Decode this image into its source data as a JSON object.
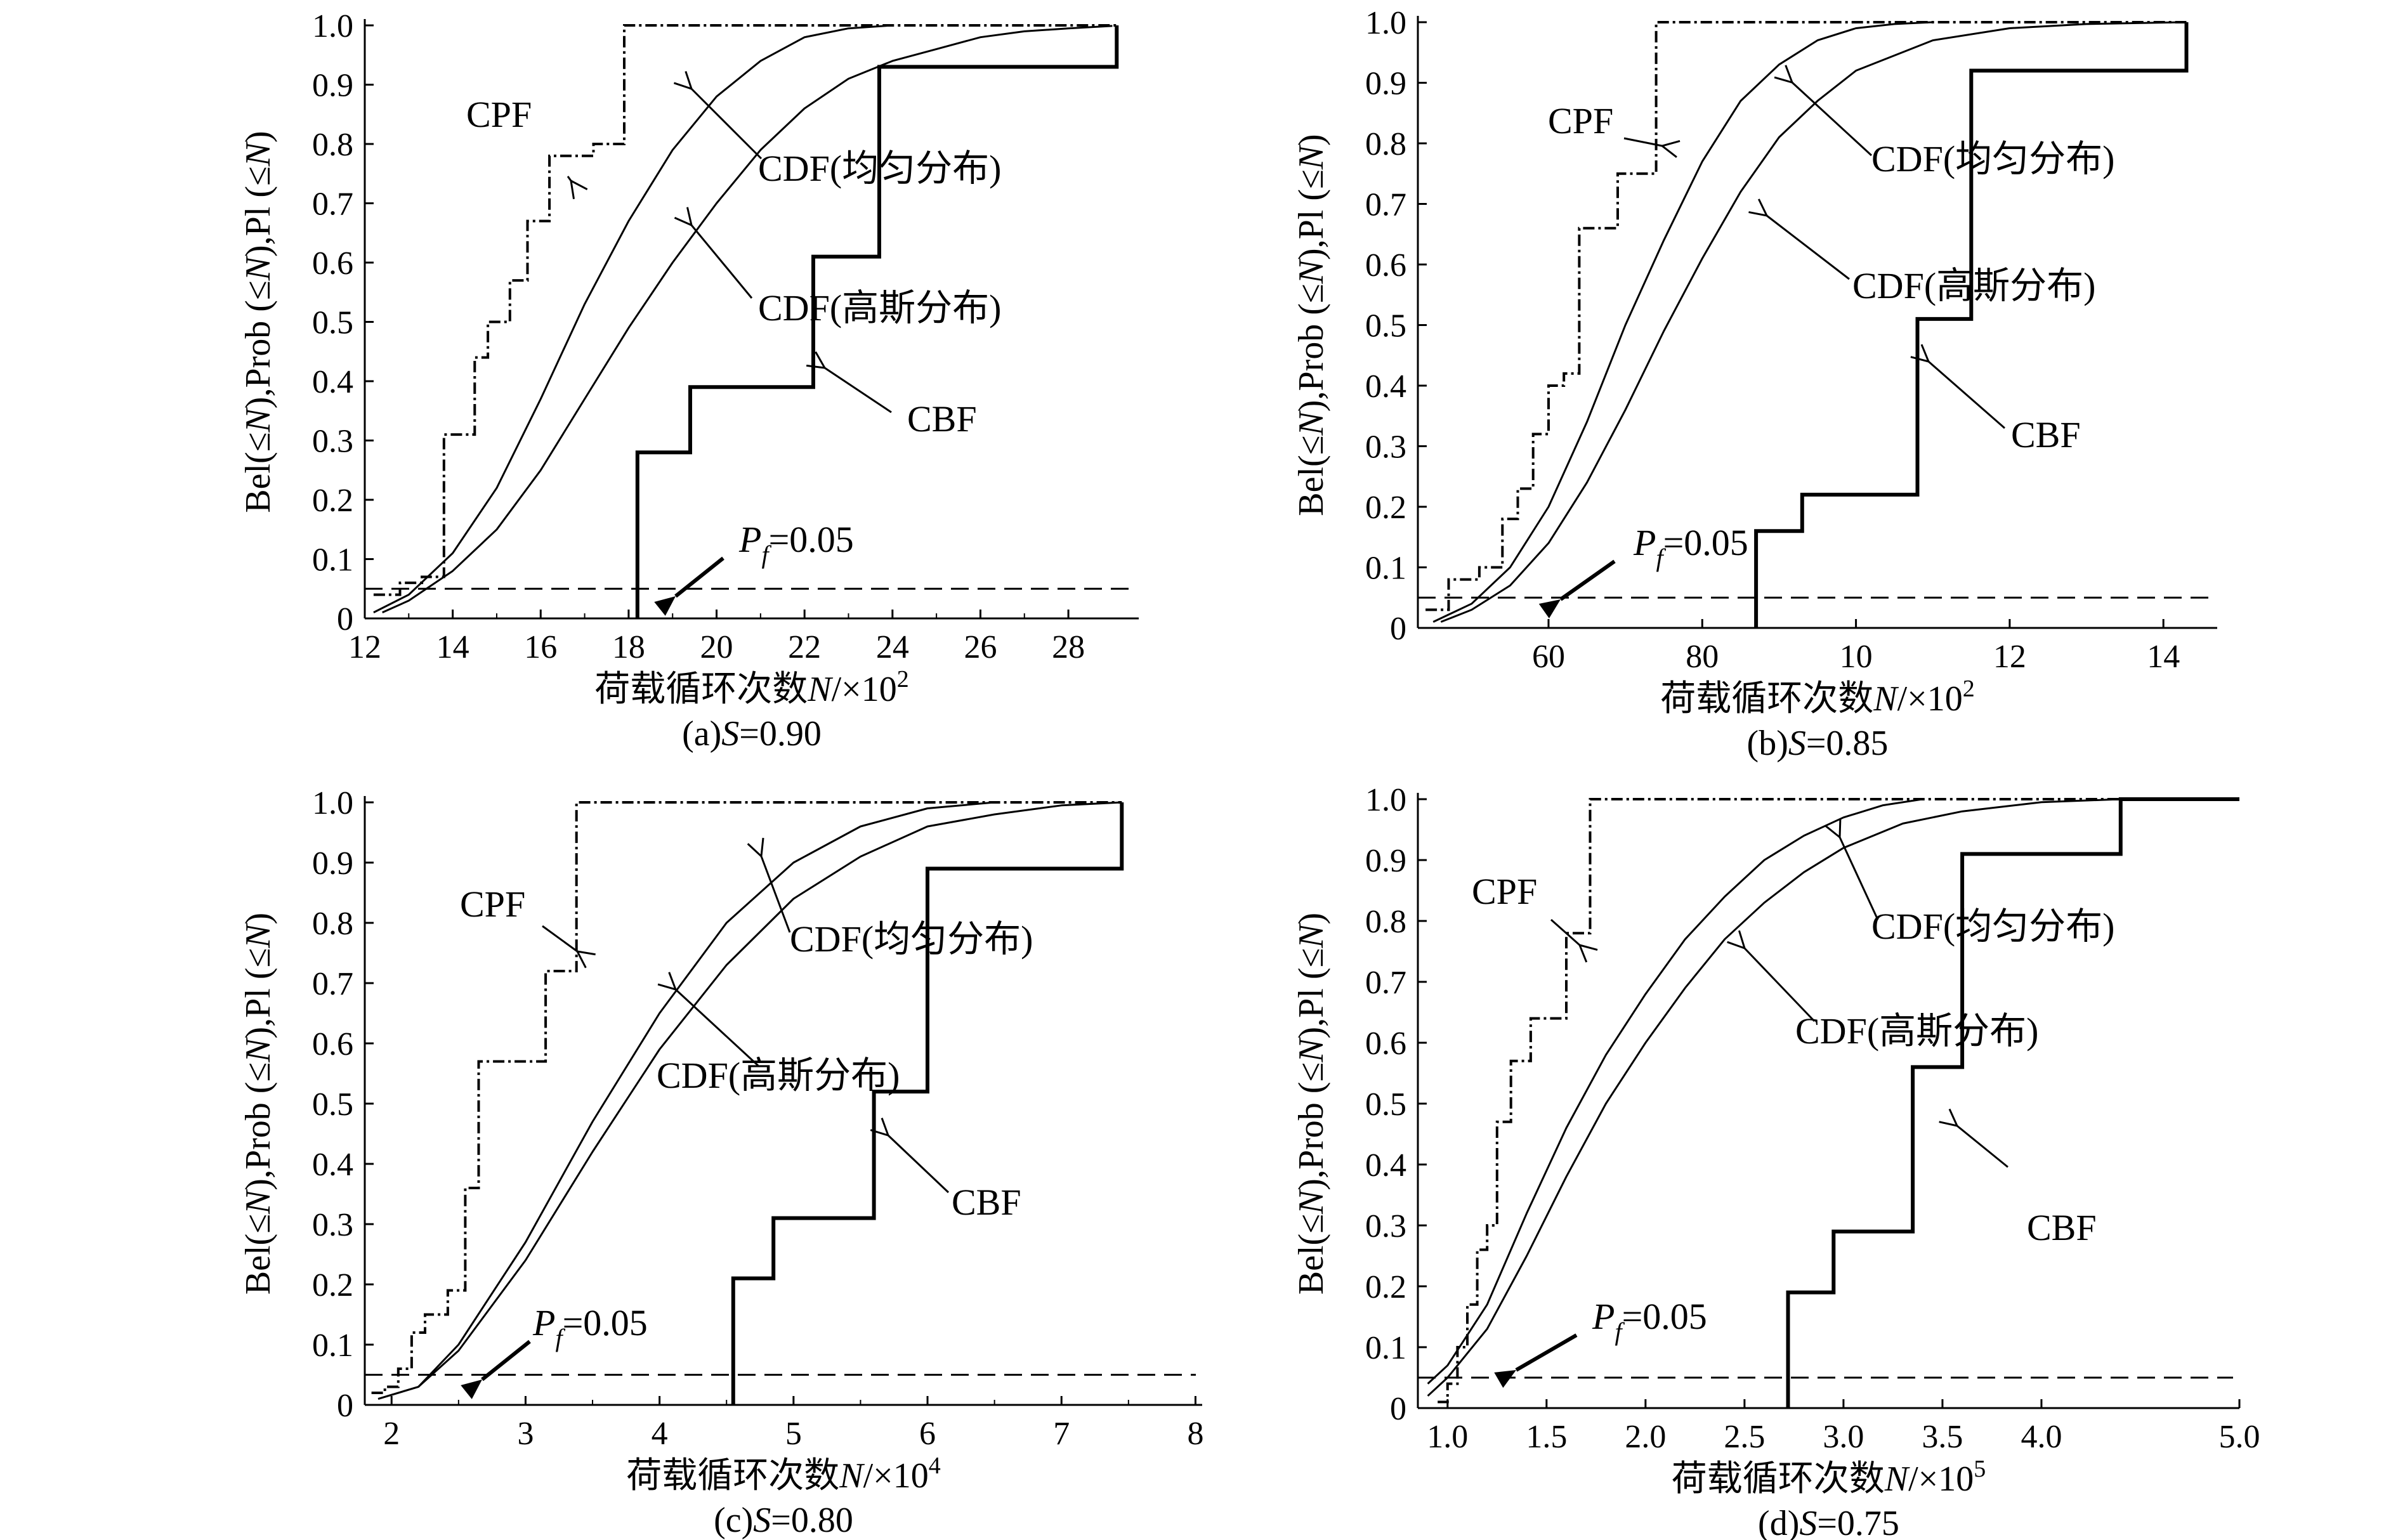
{
  "figure": {
    "ylabel": "Bel(≤N),Prob (≤N),Pl (≤N)",
    "xlabel_prefix": "荷载循环次数",
    "xlabel_var": "N",
    "pf_label": "=0.05",
    "pf_var": "P",
    "pf_sub": "f"
  },
  "chart_data": [
    {
      "type": "line",
      "caption_prefix": "(a)",
      "caption_var": "S",
      "caption_value": "=0.90",
      "xlabel_unit": "/×10",
      "xlabel_exp": "2",
      "xlim": [
        12,
        29.6
      ],
      "ylim": [
        0,
        1.0
      ],
      "xticks": [
        "12",
        "14",
        "16",
        "18",
        "20",
        "22",
        "24",
        "26",
        "28"
      ],
      "yticks": [
        "0",
        "0.1",
        "0.2",
        "0.3",
        "0.4",
        "0.5",
        "0.6",
        "0.7",
        "0.8",
        "0.9",
        "1.0"
      ],
      "pf": 0.05,
      "series": [
        {
          "name": "CPF",
          "style": "dashdot",
          "x": [
            12.2,
            12.8,
            12.8,
            13.3,
            13.3,
            13.8,
            13.8,
            14.5,
            14.5,
            14.8,
            14.8,
            15.3,
            15.3,
            15.7,
            15.7,
            16.2,
            16.2,
            16.5,
            16.5,
            17.2,
            17.2,
            17.9,
            17.9,
            29.1
          ],
          "y": [
            0.04,
            0.04,
            0.06,
            0.06,
            0.07,
            0.07,
            0.31,
            0.31,
            0.44,
            0.44,
            0.5,
            0.5,
            0.57,
            0.57,
            0.67,
            0.67,
            0.78,
            0.78,
            0.78,
            0.78,
            0.8,
            0.8,
            1.0,
            1.0
          ]
        },
        {
          "name": "CDF(均匀分布)",
          "style": "solid",
          "x": [
            12.2,
            13.0,
            14.0,
            15.0,
            16.0,
            17.0,
            18.0,
            19.0,
            20.0,
            21.0,
            22.0,
            23.0,
            24.0
          ],
          "y": [
            0.01,
            0.04,
            0.11,
            0.22,
            0.37,
            0.53,
            0.67,
            0.79,
            0.88,
            0.94,
            0.98,
            0.995,
            1.0
          ]
        },
        {
          "name": "CDF(高斯分布)",
          "style": "solid",
          "x": [
            12.4,
            13.0,
            14.0,
            15.0,
            16.0,
            17.0,
            18.0,
            19.0,
            20.0,
            21.0,
            22.0,
            23.0,
            24.0,
            25.0,
            26.0,
            27.0,
            28.0,
            29.0
          ],
          "y": [
            0.01,
            0.03,
            0.08,
            0.15,
            0.25,
            0.37,
            0.49,
            0.6,
            0.7,
            0.79,
            0.86,
            0.91,
            0.94,
            0.96,
            0.98,
            0.99,
            0.995,
            0.999
          ]
        },
        {
          "name": "CBF",
          "style": "bold",
          "x": [
            18.2,
            18.2,
            19.4,
            19.4,
            22.2,
            22.2,
            23.7,
            23.7,
            29.1,
            29.1
          ],
          "y": [
            0.0,
            0.28,
            0.28,
            0.39,
            0.39,
            0.61,
            0.61,
            0.93,
            0.93,
            1.0
          ]
        }
      ],
      "annotations": [
        {
          "label": "CPF"
        },
        {
          "label": "CDF(均匀分布)"
        },
        {
          "label": "CDF(高斯分布)"
        },
        {
          "label": "CBF"
        }
      ]
    },
    {
      "type": "line",
      "caption_prefix": "(b)",
      "caption_var": "S",
      "caption_value": "=0.85",
      "xlabel_unit": "/×10",
      "xlabel_exp": "2",
      "xlim": [
        43,
        147
      ],
      "ylim": [
        0,
        1.0
      ],
      "xticks": [
        "60",
        "80",
        "10",
        "12",
        "14"
      ],
      "xtick_values": [
        60,
        80,
        100,
        120,
        140
      ],
      "yticks": [
        "0",
        "0.1",
        "0.2",
        "0.3",
        "0.4",
        "0.5",
        "0.6",
        "0.7",
        "0.8",
        "0.9",
        "1.0"
      ],
      "pf": 0.05,
      "series": [
        {
          "name": "CPF",
          "style": "dashdot",
          "x": [
            44,
            47,
            47,
            51,
            51,
            54,
            54,
            56,
            56,
            58,
            58,
            60,
            60,
            62,
            62,
            64,
            64,
            69,
            69,
            74,
            74,
            143
          ],
          "y": [
            0.03,
            0.03,
            0.08,
            0.08,
            0.1,
            0.1,
            0.18,
            0.18,
            0.23,
            0.23,
            0.32,
            0.32,
            0.4,
            0.4,
            0.42,
            0.42,
            0.66,
            0.66,
            0.75,
            0.75,
            1.0,
            1.0
          ]
        },
        {
          "name": "CDF(均匀分布)",
          "style": "solid",
          "x": [
            45,
            50,
            55,
            60,
            65,
            70,
            75,
            80,
            85,
            90,
            95,
            100,
            105,
            110
          ],
          "y": [
            0.01,
            0.04,
            0.1,
            0.2,
            0.34,
            0.5,
            0.64,
            0.77,
            0.87,
            0.93,
            0.97,
            0.99,
            0.997,
            1.0
          ]
        },
        {
          "name": "CDF(高斯分布)",
          "style": "solid",
          "x": [
            46,
            50,
            55,
            60,
            65,
            70,
            75,
            80,
            85,
            90,
            95,
            100,
            110,
            120,
            130,
            143
          ],
          "y": [
            0.01,
            0.03,
            0.07,
            0.14,
            0.24,
            0.36,
            0.49,
            0.61,
            0.72,
            0.81,
            0.87,
            0.92,
            0.97,
            0.99,
            0.997,
            1.0
          ]
        },
        {
          "name": "CBF",
          "style": "bold",
          "x": [
            87,
            87,
            93,
            93,
            108,
            108,
            115,
            115,
            143,
            143
          ],
          "y": [
            0.0,
            0.16,
            0.16,
            0.22,
            0.22,
            0.51,
            0.51,
            0.92,
            0.92,
            1.0
          ]
        }
      ],
      "annotations": [
        {
          "label": "CPF"
        },
        {
          "label": "CDF(均匀分布)"
        },
        {
          "label": "CDF(高斯分布)"
        },
        {
          "label": "CBF"
        }
      ]
    },
    {
      "type": "line",
      "caption_prefix": "(c)",
      "caption_var": "S",
      "caption_value": "=0.80",
      "xlabel_unit": "/×10",
      "xlabel_exp": "4",
      "xlim": [
        1.8,
        8.05
      ],
      "ylim": [
        0,
        1.0
      ],
      "xticks": [
        "2",
        "3",
        "4",
        "5",
        "6",
        "7",
        "8"
      ],
      "yticks": [
        "0",
        "0.1",
        "0.2",
        "0.3",
        "0.4",
        "0.5",
        "0.6",
        "0.7",
        "0.8",
        "0.9",
        "1.0"
      ],
      "pf": 0.05,
      "series": [
        {
          "name": "CPF",
          "style": "dashdot",
          "x": [
            1.85,
            1.95,
            1.95,
            2.05,
            2.05,
            2.15,
            2.15,
            2.25,
            2.25,
            2.42,
            2.42,
            2.55,
            2.55,
            2.65,
            2.65,
            2.8,
            2.8,
            3.15,
            3.15,
            3.38,
            3.38,
            7.45
          ],
          "y": [
            0.02,
            0.02,
            0.03,
            0.03,
            0.06,
            0.06,
            0.12,
            0.12,
            0.15,
            0.15,
            0.19,
            0.19,
            0.36,
            0.36,
            0.57,
            0.57,
            0.57,
            0.57,
            0.72,
            0.72,
            1.0,
            1.0
          ]
        },
        {
          "name": "CDF(均匀分布)",
          "style": "solid",
          "x": [
            1.9,
            2.2,
            2.5,
            3.0,
            3.5,
            4.0,
            4.5,
            5.0,
            5.5,
            6.0,
            6.5
          ],
          "y": [
            0.01,
            0.03,
            0.1,
            0.27,
            0.47,
            0.65,
            0.8,
            0.9,
            0.96,
            0.99,
            1.0
          ]
        },
        {
          "name": "CDF(高斯分布)",
          "style": "solid",
          "x": [
            1.9,
            2.2,
            2.5,
            3.0,
            3.5,
            4.0,
            4.5,
            5.0,
            5.5,
            6.0,
            6.5,
            7.0,
            7.45
          ],
          "y": [
            0.01,
            0.03,
            0.09,
            0.24,
            0.42,
            0.59,
            0.73,
            0.84,
            0.91,
            0.96,
            0.98,
            0.995,
            1.0
          ]
        },
        {
          "name": "CBF",
          "style": "bold",
          "x": [
            4.55,
            4.55,
            4.85,
            4.85,
            5.6,
            5.6,
            6.0,
            6.0,
            7.45,
            7.45
          ],
          "y": [
            0.0,
            0.21,
            0.21,
            0.31,
            0.31,
            0.52,
            0.52,
            0.89,
            0.89,
            1.0
          ]
        }
      ],
      "annotations": [
        {
          "label": "CPF"
        },
        {
          "label": "CDF(均匀分布)"
        },
        {
          "label": "CDF(高斯分布)"
        },
        {
          "label": "CBF"
        }
      ]
    },
    {
      "type": "line",
      "caption_prefix": "(d)",
      "caption_var": "S",
      "caption_value": "=0.75",
      "xlabel_unit": "/×10",
      "xlabel_exp": "5",
      "xlim": [
        0.85,
        5.0
      ],
      "ylim": [
        0,
        1.0
      ],
      "xticks": [
        "1.0",
        "1.5",
        "2.0",
        "2.5",
        "3.0",
        "3.5",
        "4.0",
        "5.0"
      ],
      "xtick_values": [
        1.0,
        1.5,
        2.0,
        2.5,
        3.0,
        3.5,
        4.0,
        5.0
      ],
      "yticks": [
        "0",
        "0.1",
        "0.2",
        "0.3",
        "0.4",
        "0.5",
        "0.6",
        "0.7",
        "0.8",
        "0.9",
        "1.0"
      ],
      "pf": 0.05,
      "series": [
        {
          "name": "CPF",
          "style": "dashdot",
          "x": [
            0.95,
            1.0,
            1.0,
            1.05,
            1.05,
            1.1,
            1.1,
            1.15,
            1.15,
            1.2,
            1.2,
            1.25,
            1.25,
            1.32,
            1.32,
            1.42,
            1.42,
            1.6,
            1.6,
            1.72,
            1.72,
            4.4
          ],
          "y": [
            0.01,
            0.01,
            0.04,
            0.04,
            0.1,
            0.1,
            0.17,
            0.17,
            0.26,
            0.26,
            0.3,
            0.3,
            0.47,
            0.47,
            0.57,
            0.57,
            0.64,
            0.64,
            0.78,
            0.78,
            1.0,
            1.0
          ]
        },
        {
          "name": "CDF(均匀分布)",
          "style": "solid",
          "x": [
            0.9,
            1.0,
            1.2,
            1.4,
            1.6,
            1.8,
            2.0,
            2.2,
            2.4,
            2.6,
            2.8,
            3.0,
            3.2,
            3.4
          ],
          "y": [
            0.04,
            0.07,
            0.17,
            0.32,
            0.46,
            0.58,
            0.68,
            0.77,
            0.84,
            0.9,
            0.94,
            0.97,
            0.99,
            1.0
          ]
        },
        {
          "name": "CDF(高斯分布)",
          "style": "solid",
          "x": [
            0.9,
            1.0,
            1.2,
            1.4,
            1.6,
            1.8,
            2.0,
            2.2,
            2.4,
            2.6,
            2.8,
            3.0,
            3.3,
            3.6,
            4.0,
            4.4
          ],
          "y": [
            0.02,
            0.05,
            0.13,
            0.25,
            0.38,
            0.5,
            0.6,
            0.69,
            0.77,
            0.83,
            0.88,
            0.92,
            0.96,
            0.98,
            0.995,
            1.0
          ]
        },
        {
          "name": "CBF",
          "style": "bold",
          "x": [
            2.72,
            2.72,
            2.95,
            2.95,
            3.35,
            3.35,
            3.6,
            3.6,
            4.4,
            4.4,
            5.0
          ],
          "y": [
            0.0,
            0.19,
            0.19,
            0.29,
            0.29,
            0.56,
            0.56,
            0.91,
            0.91,
            1.0,
            1.0
          ]
        }
      ],
      "annotations": [
        {
          "label": "CPF"
        },
        {
          "label": "CDF(均匀分布)"
        },
        {
          "label": "CDF(高斯分布)"
        },
        {
          "label": "CBF"
        }
      ]
    }
  ]
}
